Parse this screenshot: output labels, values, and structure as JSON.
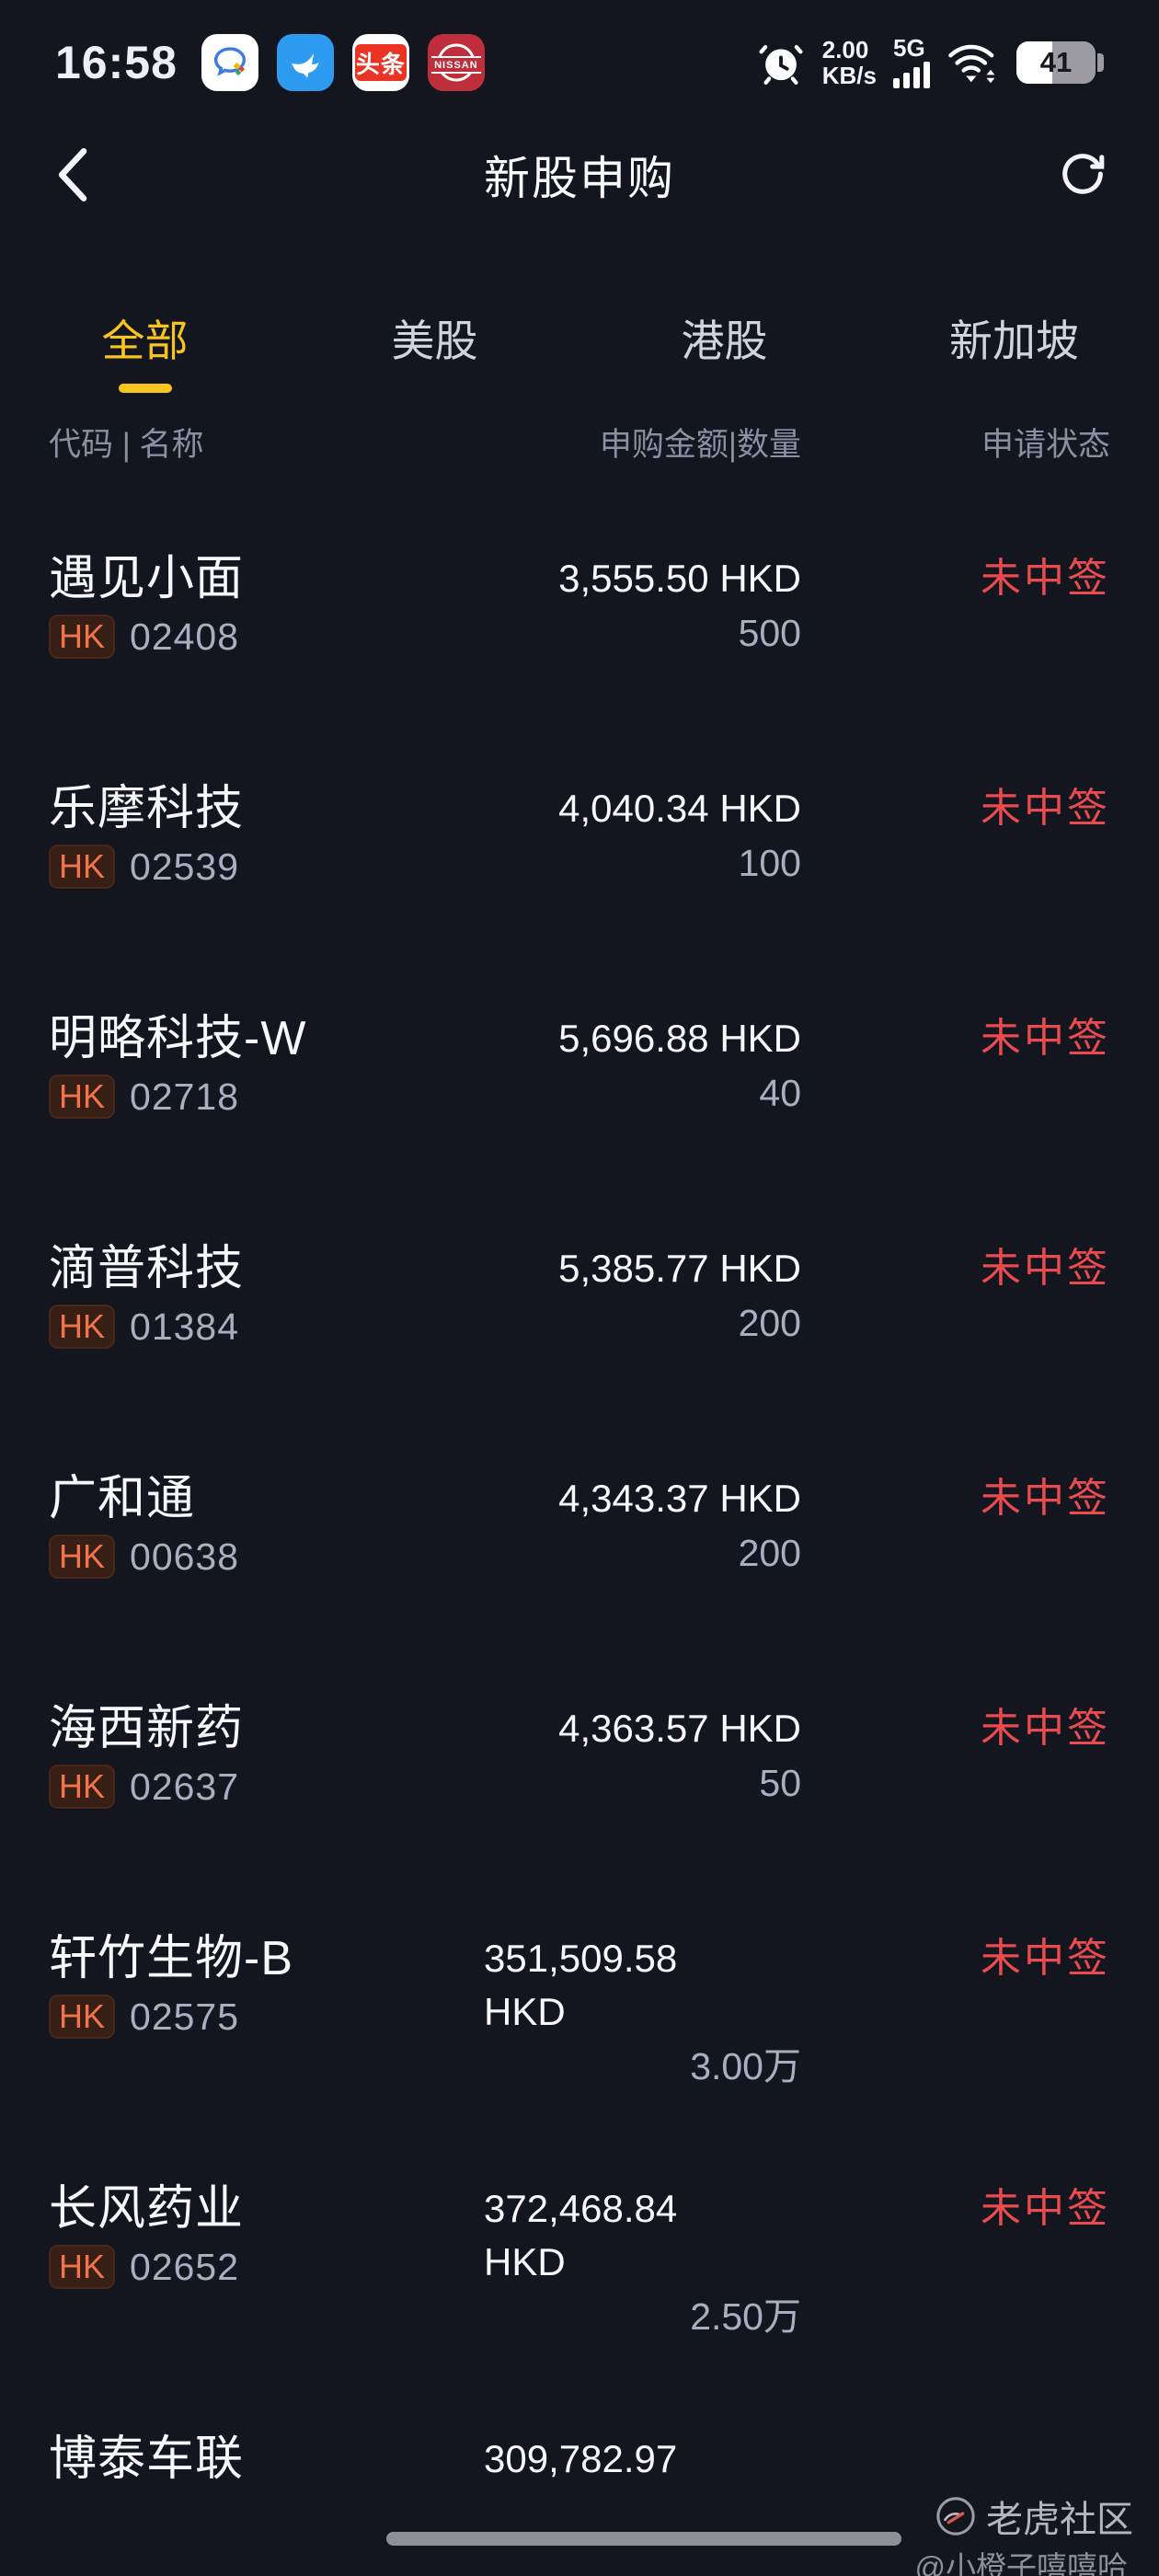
{
  "colors": {
    "background": "#14161F",
    "accent_yellow": "#F7C51E",
    "status_red": "#EA4B4F",
    "hk_orange": "#F3744B"
  },
  "status_bar": {
    "time": "16:58",
    "toutiao_label": "头条",
    "nissan_label": "NISSAN",
    "net_speed_value": "2.00",
    "net_speed_unit": "KB/s",
    "network_type": "5G",
    "battery_percent": "41"
  },
  "nav": {
    "title": "新股申购"
  },
  "tabs": [
    {
      "label": "全部",
      "active": true
    },
    {
      "label": "美股",
      "active": false
    },
    {
      "label": "港股",
      "active": false
    },
    {
      "label": "新加坡",
      "active": false
    }
  ],
  "table": {
    "headers": {
      "code_name": "代码 | 名称",
      "amount_qty": "申购金额|数量",
      "status": "申请状态"
    },
    "rows": [
      {
        "name": "遇见小面",
        "market": "HK",
        "code": "02408",
        "amount_lines": [
          "3,555.50 HKD"
        ],
        "qty": "500",
        "status": "未中签",
        "wrap": false,
        "partial": false
      },
      {
        "name": "乐摩科技",
        "market": "HK",
        "code": "02539",
        "amount_lines": [
          "4,040.34 HKD"
        ],
        "qty": "100",
        "status": "未中签",
        "wrap": false,
        "partial": false
      },
      {
        "name": "明略科技-W",
        "market": "HK",
        "code": "02718",
        "amount_lines": [
          "5,696.88 HKD"
        ],
        "qty": "40",
        "status": "未中签",
        "wrap": false,
        "partial": false
      },
      {
        "name": "滴普科技",
        "market": "HK",
        "code": "01384",
        "amount_lines": [
          "5,385.77 HKD"
        ],
        "qty": "200",
        "status": "未中签",
        "wrap": false,
        "partial": false
      },
      {
        "name": "广和通",
        "market": "HK",
        "code": "00638",
        "amount_lines": [
          "4,343.37 HKD"
        ],
        "qty": "200",
        "status": "未中签",
        "wrap": false,
        "partial": false
      },
      {
        "name": "海西新药",
        "market": "HK",
        "code": "02637",
        "amount_lines": [
          "4,363.57 HKD"
        ],
        "qty": "50",
        "status": "未中签",
        "wrap": false,
        "partial": false
      },
      {
        "name": "轩竹生物-B",
        "market": "HK",
        "code": "02575",
        "amount_lines": [
          "351,509.58",
          "HKD"
        ],
        "qty": "3.00万",
        "status": "未中签",
        "wrap": true,
        "partial": false
      },
      {
        "name": "长风药业",
        "market": "HK",
        "code": "02652",
        "amount_lines": [
          "372,468.84",
          "HKD"
        ],
        "qty": "2.50万",
        "status": "未中签",
        "wrap": true,
        "partial": false
      },
      {
        "name": "博泰车联",
        "market": "",
        "code": "",
        "amount_lines": [
          "309,782.97"
        ],
        "qty": "",
        "status": "",
        "wrap": true,
        "partial": true
      }
    ]
  },
  "watermark": {
    "brand": "老虎社区",
    "handle": "@小橙子嘻嘻哈"
  }
}
